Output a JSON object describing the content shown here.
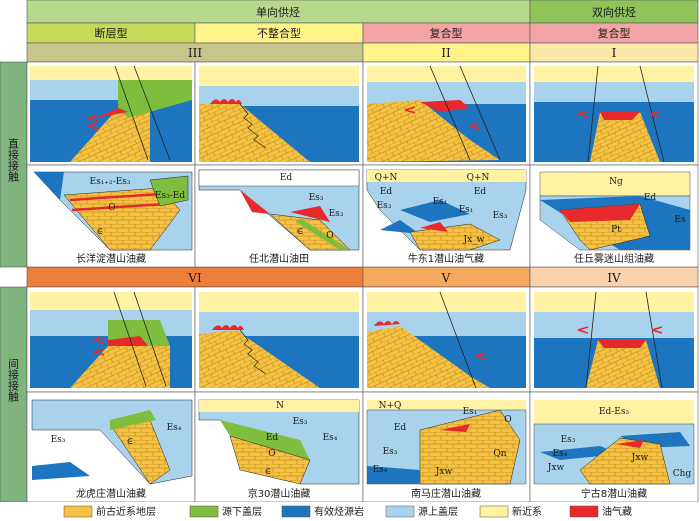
{
  "header": {
    "unidirectional": "单向供烃",
    "bidirectional": "双向供烃",
    "types": [
      "断层型",
      "不整合型",
      "复合型",
      "复合型"
    ],
    "roman_top": [
      "III",
      "II",
      "I"
    ],
    "roman_bottom": [
      "VI",
      "V",
      "IV"
    ]
  },
  "rows": {
    "direct": "直接接触",
    "indirect": "间接接触"
  },
  "captions": {
    "direct": [
      "长洋淀潜山油藏",
      "任北潜山油田",
      "牛东1潜山油气藏",
      "任丘雾迷山组油藏"
    ],
    "indirect": [
      "龙虎庄潜山油藏",
      "京30潜山油藏",
      "南马庄潜山油藏",
      "宁古8潜山油藏"
    ]
  },
  "section_labels": {
    "c1": [
      "Es₁₊₂-Es₃",
      "O",
      "∈",
      "Es₃-Ed"
    ],
    "c2": [
      "Ed",
      "Es₃",
      "Es₃",
      "∈",
      "O"
    ],
    "c3": [
      "Q+N",
      "Q+N",
      "Ed",
      "Ed",
      "Es₃",
      "Es₁",
      "Es₁",
      "Es₃",
      "Jx_w"
    ],
    "c4": [
      "Ng",
      "Ed",
      "Es",
      "Pt"
    ],
    "c5": [
      "Es₃",
      "Es₄",
      "∈"
    ],
    "c6": [
      "N",
      "Ed",
      "Es₃",
      "Es₄",
      "O",
      "∈"
    ],
    "c7": [
      "N+Q",
      "Es₁",
      "Ed",
      "Es₃",
      "Es₄",
      "O",
      "Qn",
      "Jxw"
    ],
    "c8": [
      "Ed-Es₃",
      "Es₃",
      "Es₄",
      "Jxw",
      "Jxw",
      "Chg"
    ]
  },
  "legend": [
    "前古近系地层",
    "源下盖层",
    "有效烃源岩",
    "源上盖层",
    "新近系",
    "油气藏"
  ],
  "colors": {
    "pre_paleogene": "#f5c242",
    "sub_source_cap": "#7ebd3d",
    "source_rock": "#1d75c0",
    "supra_source_cap": "#a9d3ec",
    "neogene": "#fff2a3",
    "reservoir": "#e8292b",
    "header_green": "#b6d88a",
    "header_olive": "#c7c58b",
    "header_yellow": "#fff38a",
    "header_pink": "#f3a5a5",
    "header_cream": "#fbe7a8",
    "band_orange1": "#ed7d3a",
    "band_orange2": "#f5a85e",
    "band_peach": "#f9d2ad",
    "rowlabel_green": "#7fb47f"
  }
}
